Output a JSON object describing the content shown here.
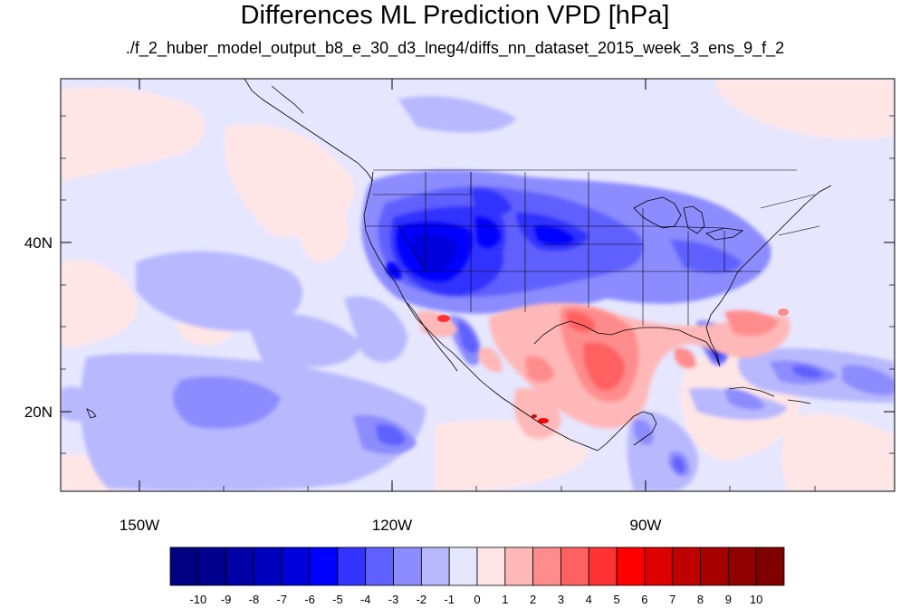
{
  "chart_data": {
    "type": "heatmap",
    "title": "Differences ML Prediction VPD [hPa]",
    "subtitle": "./f_2_huber_model_output_b8_e_30_d3_lneg4/diffs_nn_dataset_2015_week_3_ens_9_f_2",
    "units": "hPa",
    "x_ticks": [
      "150W",
      "120W",
      "90W"
    ],
    "y_ticks": [
      "40N",
      "20N"
    ],
    "lon_range": [
      -160,
      -61
    ],
    "lat_range": [
      10,
      59
    ],
    "colorbar": {
      "levels": [
        "-10",
        "-9",
        "-8",
        "-7",
        "-6",
        "-5",
        "-4",
        "-3",
        "-2",
        "-1",
        "0",
        "1",
        "2",
        "3",
        "4",
        "5",
        "6",
        "7",
        "8",
        "9",
        "10"
      ],
      "colors": [
        "#000080",
        "#00008f",
        "#0000a6",
        "#0000bf",
        "#0000dd",
        "#0000ff",
        "#3333ff",
        "#6060ff",
        "#8c8cff",
        "#b8b8ff",
        "#e6e6ff",
        "#ffe6e6",
        "#ffb8b8",
        "#ff8c8c",
        "#ff6060",
        "#ff3333",
        "#ff0000",
        "#dd0000",
        "#bf0000",
        "#a60000",
        "#8f0000",
        "#800000"
      ]
    },
    "regions_approx": [
      {
        "name": "western US interior",
        "value": -6
      },
      {
        "name": "central plains",
        "value": -4
      },
      {
        "name": "Great Lakes / Ohio valley",
        "value": -2
      },
      {
        "name": "Texas / Gulf of Mexico",
        "value": 3
      },
      {
        "name": "Florida peninsula",
        "value": -4
      },
      {
        "name": "eastern Pacific subtropics",
        "value": -2
      },
      {
        "name": "Caribbean",
        "value": -2
      }
    ]
  }
}
